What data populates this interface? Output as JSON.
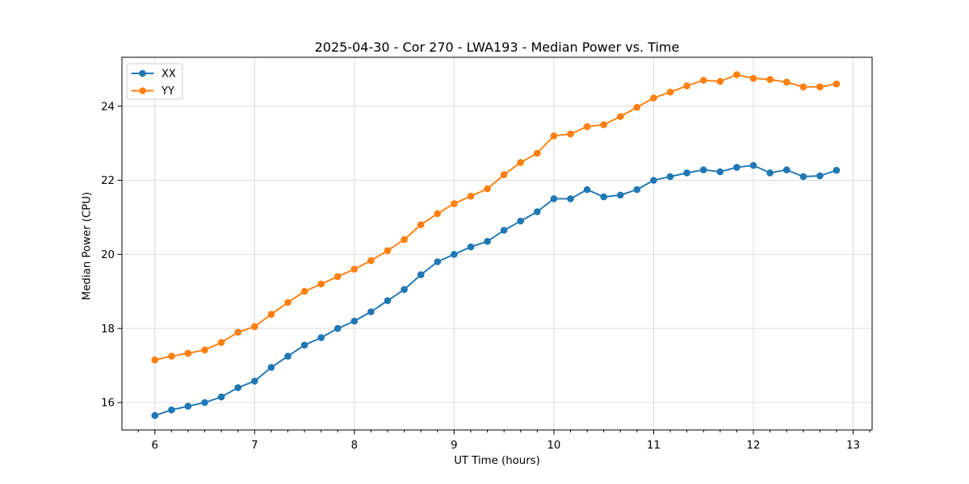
{
  "page": {
    "background": "#ffffff",
    "text_color": "#000000",
    "grid_color": "#dcdcdc",
    "spine_color": "#000000",
    "legend_edge_color": "#cccccc"
  },
  "chart_data": {
    "type": "line",
    "title": "2025-04-30 - Cor 270 - LWA193 - Median Power vs. Time",
    "xlabel": "UT Time (hours)",
    "ylabel": "Median Power (CPU)",
    "xlim": [
      5.67,
      13.19
    ],
    "ylim": [
      15.26,
      25.32
    ],
    "x_ticks": [
      6,
      7,
      8,
      9,
      10,
      11,
      12,
      13
    ],
    "y_ticks": [
      16,
      18,
      20,
      22,
      24
    ],
    "x_minor_tick_step": 0.16667,
    "grid": true,
    "legend_position": "upper left",
    "marker": "circle",
    "x": [
      6,
      6.1667,
      6.3333,
      6.5,
      6.6667,
      6.8333,
      7,
      7.1667,
      7.3333,
      7.5,
      7.6667,
      7.8333,
      8,
      8.1667,
      8.3333,
      8.5,
      8.6667,
      8.8333,
      9,
      9.1667,
      9.3333,
      9.5,
      9.6667,
      9.8333,
      10,
      10.1667,
      10.3333,
      10.5,
      10.6667,
      10.8333,
      11,
      11.1667,
      11.3333,
      11.5,
      11.6667,
      11.8333,
      12,
      12.1667,
      12.3333,
      12.5,
      12.6667,
      12.8333
    ],
    "series": [
      {
        "name": "XX",
        "color": "#1f77b4",
        "values": [
          15.65,
          15.8,
          15.9,
          16.0,
          16.15,
          16.4,
          16.58,
          16.95,
          17.25,
          17.55,
          17.75,
          18.0,
          18.2,
          18.45,
          18.75,
          19.05,
          19.45,
          19.8,
          20.0,
          20.2,
          20.35,
          20.65,
          20.9,
          21.15,
          21.5,
          21.5,
          21.75,
          21.55,
          21.6,
          21.75,
          22.0,
          22.1,
          22.2,
          22.28,
          22.23,
          22.35,
          22.4,
          22.2,
          22.28,
          22.1,
          22.12,
          22.27
        ]
      },
      {
        "name": "YY",
        "color": "#ff7f0e",
        "values": [
          17.15,
          17.25,
          17.33,
          17.42,
          17.62,
          17.9,
          18.05,
          18.38,
          18.7,
          19.0,
          19.2,
          19.4,
          19.6,
          19.83,
          20.1,
          20.4,
          20.8,
          21.1,
          21.37,
          21.57,
          21.77,
          22.15,
          22.48,
          22.73,
          23.2,
          23.25,
          23.45,
          23.5,
          23.72,
          23.97,
          24.22,
          24.38,
          24.55,
          24.7,
          24.67,
          24.85,
          24.75,
          24.72,
          24.65,
          24.52,
          24.52,
          24.6
        ]
      }
    ]
  }
}
